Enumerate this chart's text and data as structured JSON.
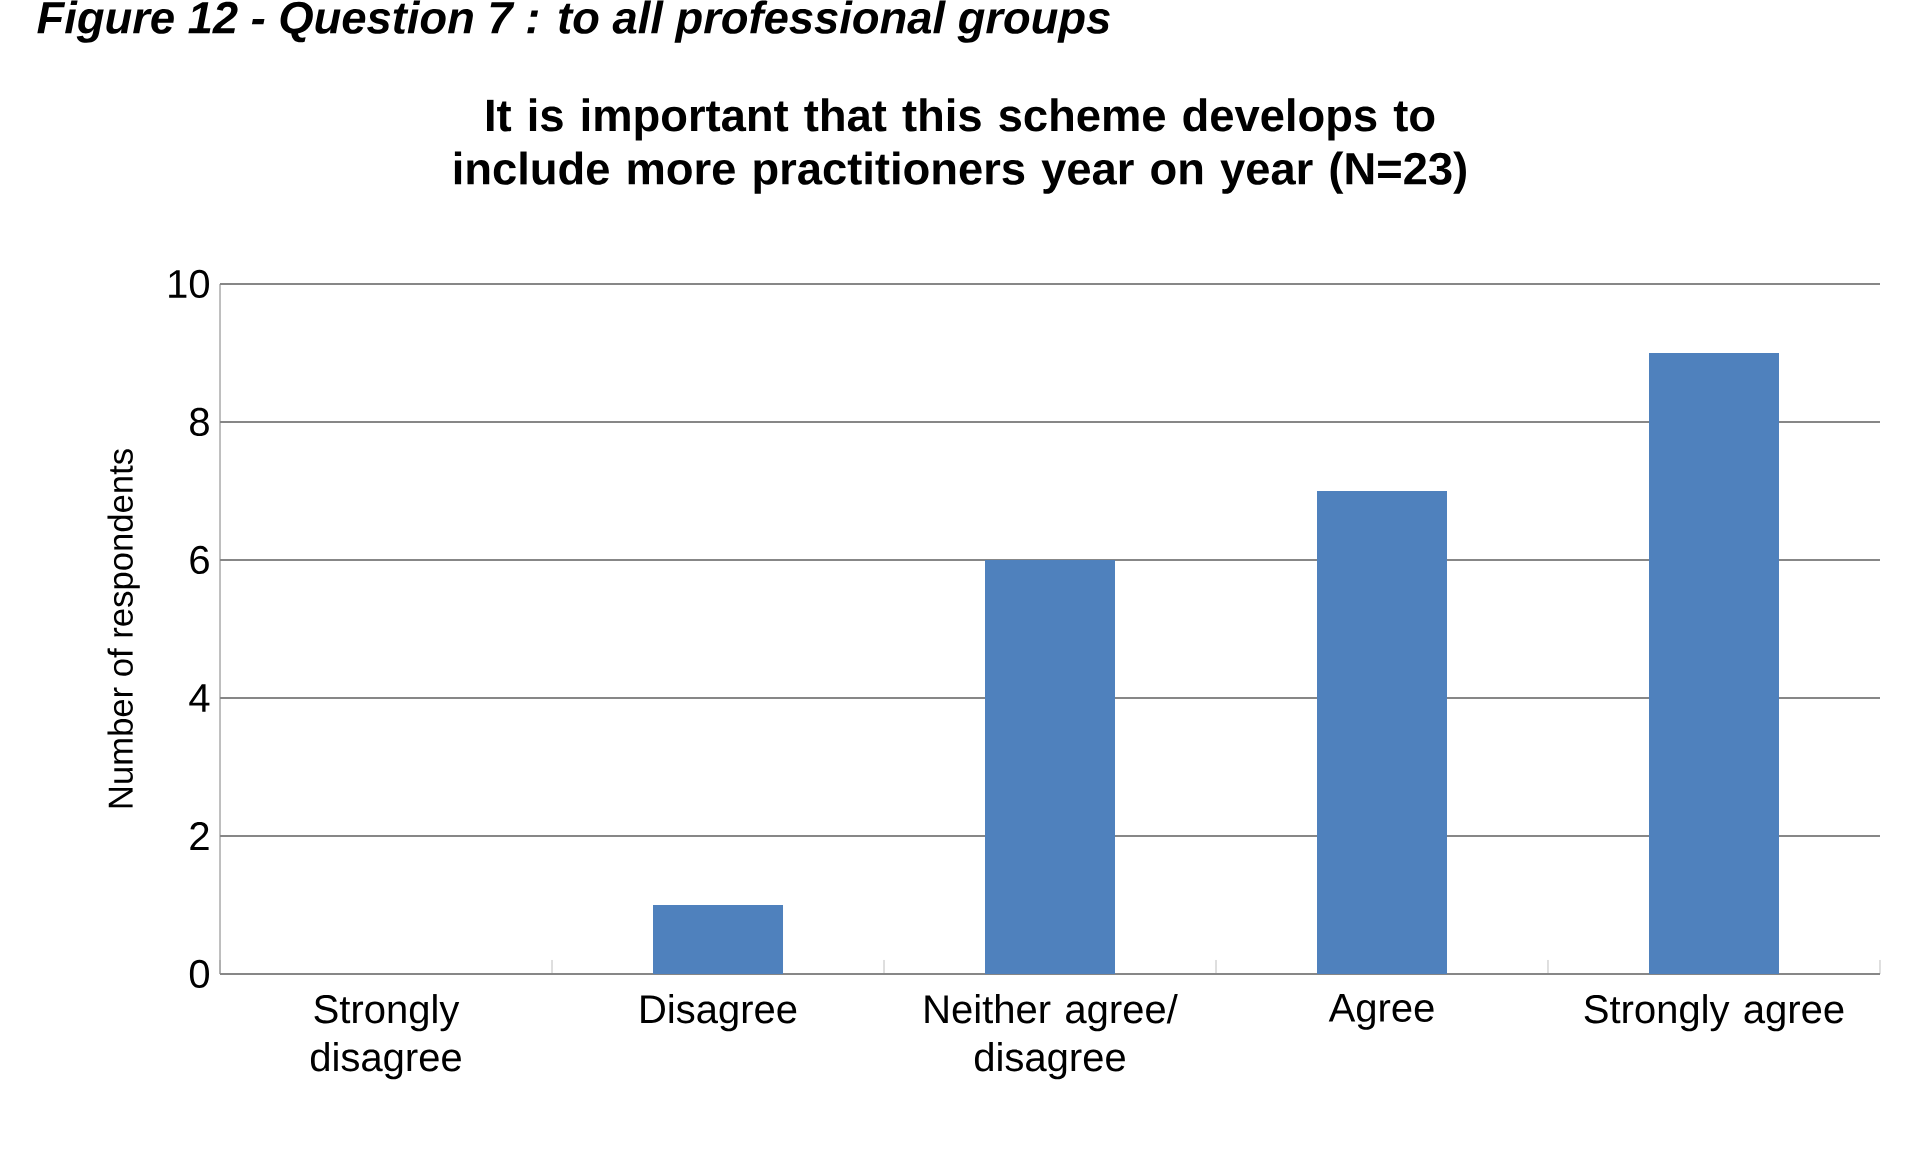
{
  "chart_data": {
    "type": "bar",
    "title": "It is important that this scheme develops to include more practitioners year on year (N=23)",
    "ylabel": "Number of respondents",
    "annotations": [
      "Figure 12 - Question 7 : to all professional groups"
    ],
    "categories": [
      "Strongly disagree",
      "Disagree",
      "Neither agree/ disagree",
      "Agree",
      "Strongly agree"
    ],
    "values": [
      0,
      1,
      6,
      7,
      9
    ],
    "color": "#4f81bd",
    "ylim": [
      0,
      10
    ],
    "yticks": [
      0,
      2,
      4,
      6,
      8,
      10
    ],
    "grid": "y"
  }
}
